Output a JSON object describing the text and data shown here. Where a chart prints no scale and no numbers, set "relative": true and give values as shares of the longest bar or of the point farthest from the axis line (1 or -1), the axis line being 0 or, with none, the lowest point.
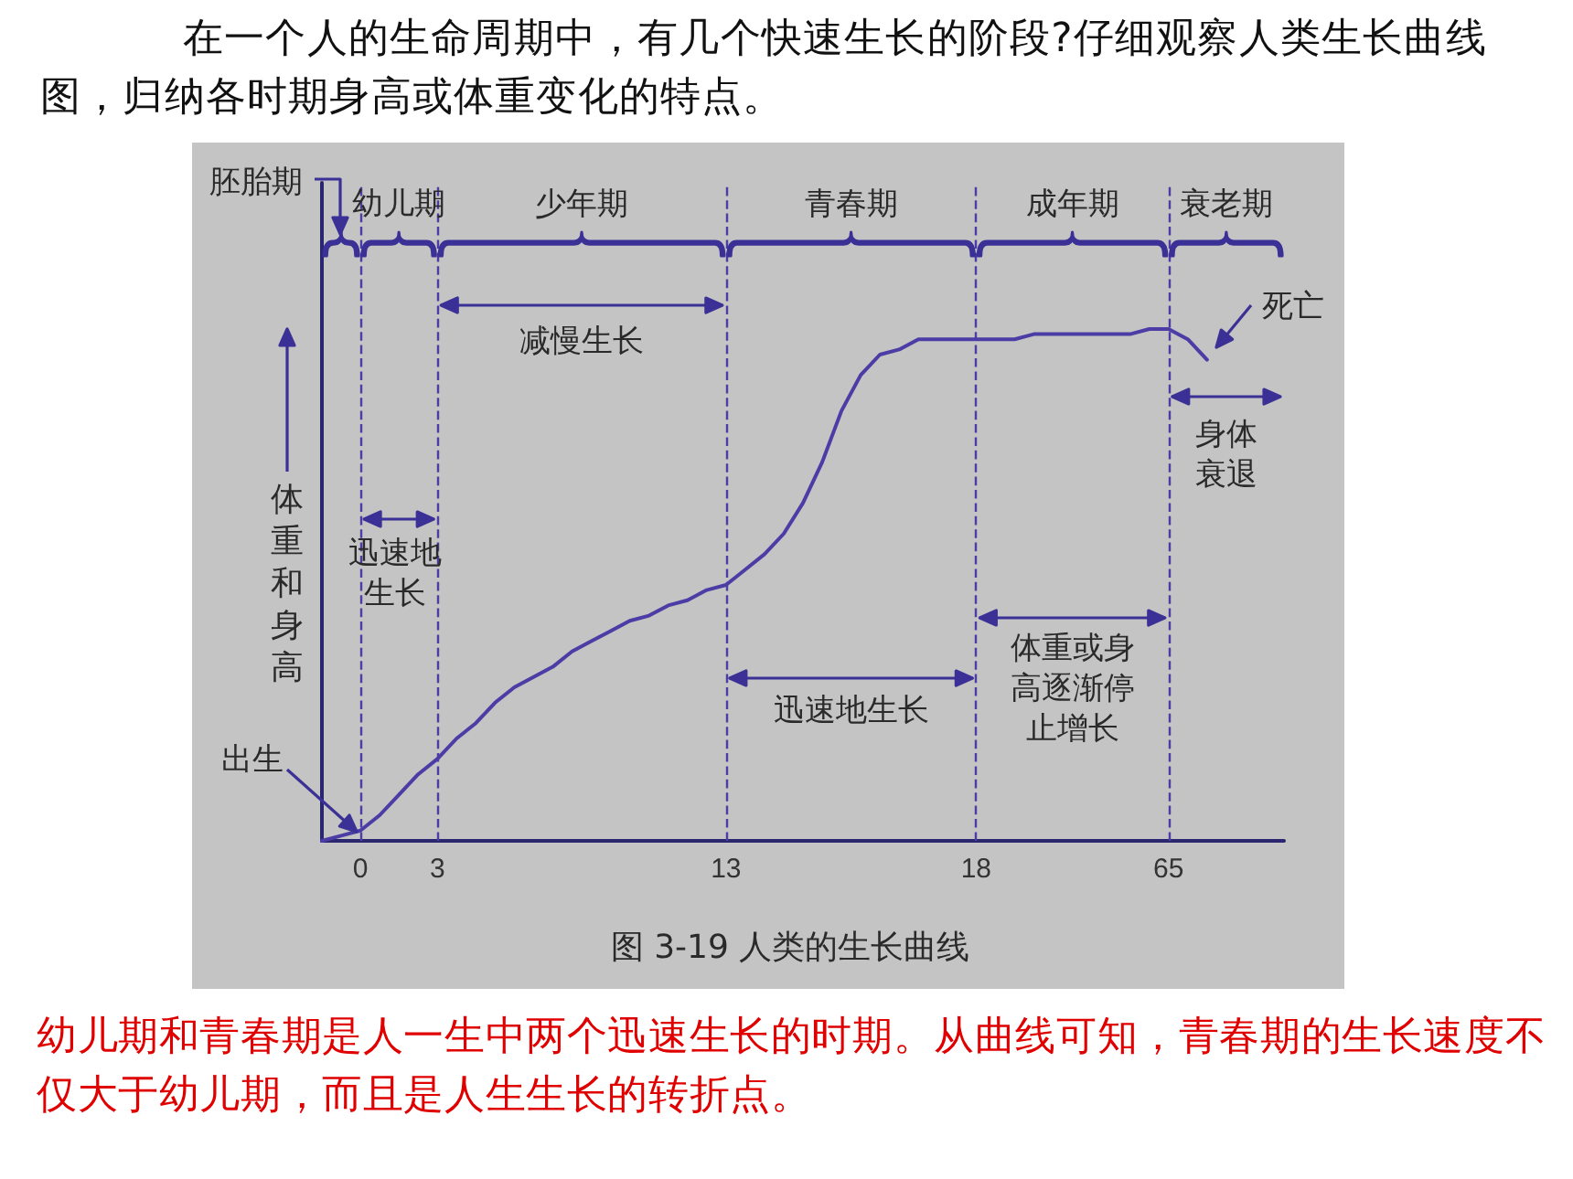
{
  "chart_data": {
    "type": "line",
    "relative": true,
    "title": "在一个人的生命周期中，有几个快速生长的阶段?仔细观察人类生长曲线图，归纳各时期身高或体重变化的特点。",
    "ylabel": "体重和身高",
    "categories": [
      null,
      null,
      "0",
      null,
      null,
      null,
      "3",
      null,
      null,
      null,
      null,
      null,
      null,
      null,
      null,
      null,
      null,
      null,
      null,
      null,
      null,
      "13",
      null,
      null,
      null,
      null,
      null,
      null,
      null,
      null,
      null,
      null,
      null,
      null,
      "18",
      null,
      null,
      null,
      null,
      null,
      null,
      null,
      null,
      null,
      "65",
      null,
      null,
      null,
      null,
      null,
      null
    ],
    "series": [
      {
        "color": "#4b3ca6",
        "values": [
          0,
          0.01,
          0.02,
          0.05,
          0.09,
          0.13,
          0.16,
          0.2,
          0.23,
          0.27,
          0.3,
          0.32,
          0.34,
          0.37,
          0.39,
          0.41,
          0.43,
          0.44,
          0.46,
          0.47,
          0.49,
          0.5,
          0.53,
          0.56,
          0.6,
          0.66,
          0.74,
          0.84,
          0.91,
          0.95,
          0.96,
          0.98,
          0.98,
          0.98,
          0.98,
          0.98,
          0.98,
          0.99,
          0.99,
          0.99,
          0.99,
          0.99,
          0.99,
          1,
          1,
          0.98,
          0.94,
          null,
          null,
          null,
          null
        ]
      }
    ],
    "ref_lines": [
      {
        "axis": "x",
        "value": "0",
        "color": "#4b3ca6",
        "line_style": "dashed"
      },
      {
        "axis": "x",
        "value": "3",
        "color": "#4b3ca6",
        "line_style": "dashed"
      },
      {
        "axis": "x",
        "value": "13",
        "color": "#4b3ca6",
        "line_style": "dashed"
      },
      {
        "axis": "x",
        "value": "18",
        "color": "#4b3ca6",
        "line_style": "dashed"
      },
      {
        "axis": "x",
        "value": "65",
        "color": "#4b3ca6",
        "line_style": "dashed"
      }
    ],
    "annotations": [
      "胚胎期",
      "幼儿期",
      "少年期",
      "青春期",
      "成年期",
      "衰老期",
      "减慢生长",
      "迅速地生长",
      "迅速地生长",
      "体重或身高逐渐停止增长",
      "身体衰退",
      "死亡",
      "出生",
      "图 3-19 人类的生长曲线",
      "幼儿期和青春期是人一生中两个迅速生长的时期。从曲线可知，青春期的生长速度不仅大于幼儿期，而且是人生生长的转折点。"
    ],
    "marker": "none",
    "line_style": "solid",
    "grid": false
  }
}
